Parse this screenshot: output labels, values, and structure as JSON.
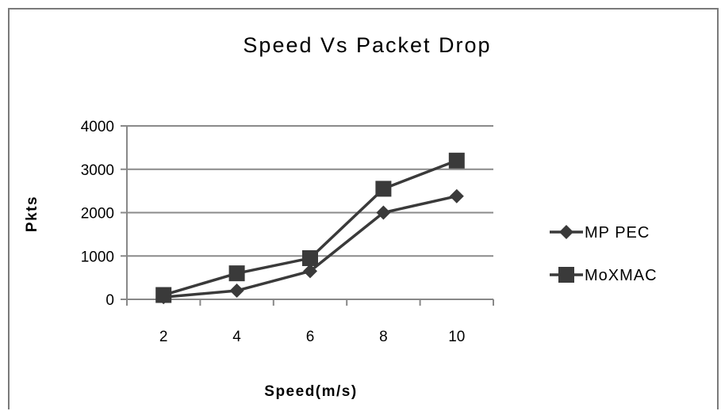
{
  "chart_data": {
    "type": "line",
    "title": "Speed Vs Packet Drop",
    "xlabel": "Speed(m/s)",
    "ylabel": "Pkts",
    "categories": [
      "2",
      "4",
      "6",
      "8",
      "10"
    ],
    "yticks": [
      "0",
      "1000",
      "2000",
      "3000",
      "4000"
    ],
    "ylim": [
      0,
      4000
    ],
    "grid": true,
    "legend_position": "right",
    "series": [
      {
        "name": "MP PEC",
        "marker": "diamond",
        "color": "#3a3a3a",
        "values": [
          50,
          200,
          650,
          2000,
          2380
        ]
      },
      {
        "name": "MoXMAC",
        "marker": "square",
        "color": "#3a3a3a",
        "values": [
          100,
          600,
          950,
          2550,
          3200
        ]
      }
    ]
  }
}
